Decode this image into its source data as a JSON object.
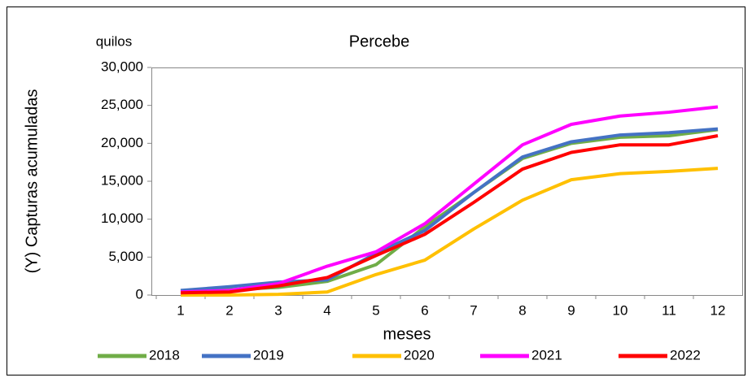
{
  "chart_data": {
    "type": "line",
    "title": "Percebe",
    "unit_label": "quilos",
    "y_label": "(Y) Capturas acumuladas",
    "x_label": "meses",
    "categories": [
      "1",
      "2",
      "3",
      "4",
      "5",
      "6",
      "7",
      "8",
      "9",
      "10",
      "11",
      "12"
    ],
    "series": [
      {
        "name": "2018",
        "color": "#70ad47",
        "values": [
          500,
          700,
          1000,
          1800,
          4000,
          9000,
          13500,
          18000,
          20000,
          20800,
          21000,
          21800
        ]
      },
      {
        "name": "2019",
        "color": "#4472c4",
        "values": [
          600,
          1100,
          1700,
          2000,
          5500,
          8500,
          13500,
          18200,
          20200,
          21100,
          21400,
          21900
        ]
      },
      {
        "name": "2020",
        "color": "#ffc000",
        "values": [
          0,
          0,
          100,
          400,
          2700,
          4600,
          8700,
          12500,
          15200,
          16000,
          16300,
          16700
        ]
      },
      {
        "name": "2021",
        "color": "#ff00ff",
        "values": [
          400,
          600,
          1500,
          3800,
          5700,
          9400,
          14600,
          19800,
          22500,
          23600,
          24100,
          24800
        ]
      },
      {
        "name": "2022",
        "color": "#ff0000",
        "values": [
          300,
          400,
          1200,
          2300,
          5200,
          8000,
          12200,
          16600,
          18800,
          19800,
          19800,
          21000
        ]
      }
    ],
    "ylim": [
      0,
      30000
    ],
    "yticks": [
      0,
      {
        "value": 5000,
        "label": "5,000"
      },
      {
        "value": 10000,
        "label": "10,000"
      },
      {
        "value": 15000,
        "label": "15,000"
      },
      {
        "value": 20000,
        "label": "20,000"
      },
      {
        "value": 25000,
        "label": "25,000"
      },
      {
        "value": 30000,
        "label": "30,000"
      }
    ],
    "grid": false,
    "legend": "bottom"
  }
}
